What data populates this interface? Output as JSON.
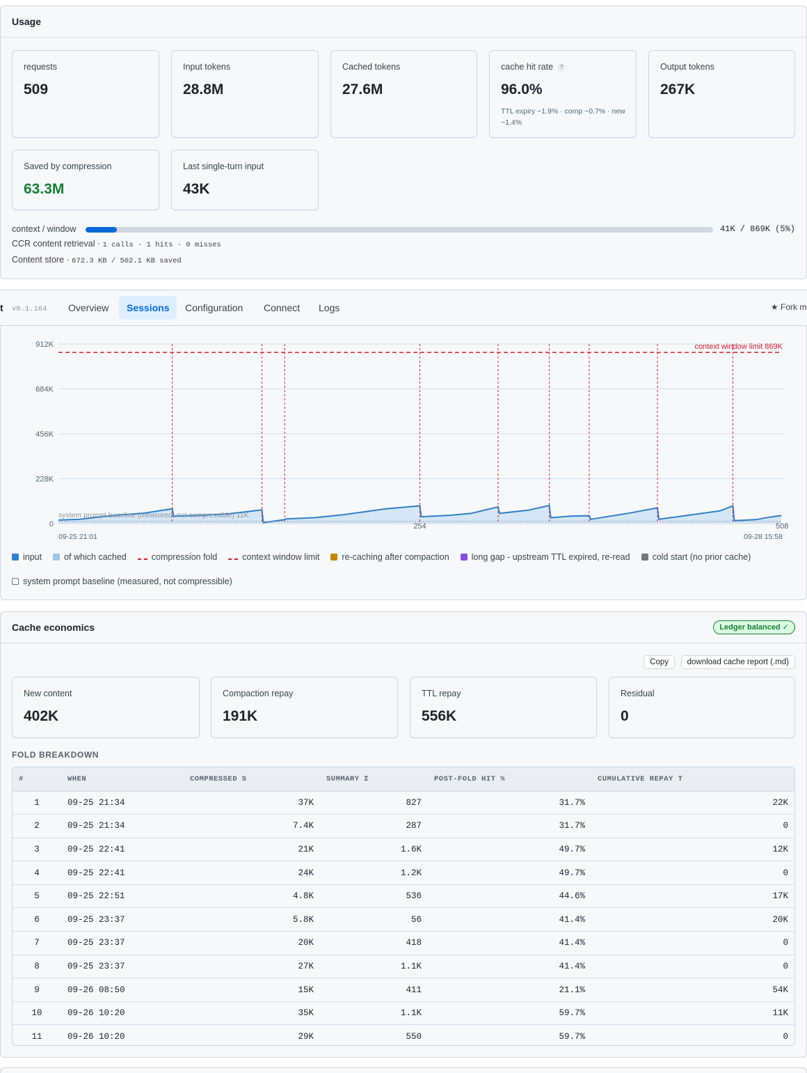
{
  "usage": {
    "title": "Usage",
    "cards": [
      {
        "label": "requests",
        "value": "509"
      },
      {
        "label": "Input tokens",
        "value": "28.8M"
      },
      {
        "label": "Cached tokens",
        "value": "27.6M"
      },
      {
        "label": "cache hit rate",
        "value": "96.0%",
        "note": "TTL expiry −1.9% · comp −0.7% · new −1.4%",
        "help": "?"
      },
      {
        "label": "Output tokens",
        "value": "267K"
      },
      {
        "label": "Saved by compression",
        "value": "63.3M"
      },
      {
        "label": "Last single-turn input",
        "value": "43K"
      }
    ],
    "context": {
      "label": "context / window",
      "value_text": "41K / 869K (5%)",
      "fraction": 0.05
    },
    "ccr": {
      "label": "CCR content retrieval",
      "stats": "1 calls · 1 hits · 0 misses"
    },
    "store": {
      "label": "Content store",
      "stats": "672.3 KB / 502.1 KB saved"
    }
  },
  "nav": {
    "brand": "t",
    "version": "v0.1.164",
    "tabs": [
      "Overview",
      "Sessions",
      "Configuration",
      "Connect",
      "Logs"
    ],
    "active_tab": "Sessions",
    "fork_label": "★ Fork me"
  },
  "chart_data": {
    "type": "area",
    "y_ticks": [
      "912K",
      "684K",
      "456K",
      "228K",
      "0"
    ],
    "ylim": [
      0,
      912000
    ],
    "xlim": [
      0,
      508
    ],
    "x_tick_labels": [
      "254",
      "508"
    ],
    "x_start_label": "09-25 21:01",
    "x_end_label": "09-28 15:58",
    "context_limit": 869000,
    "context_limit_label": "context window limit 869K",
    "baseline": 11000,
    "baseline_label": "system prompt baseline (measured, not compressible) 11K",
    "fold_requests": [
      80,
      143,
      159,
      254,
      309,
      345,
      373,
      421,
      474
    ],
    "input_series": [
      {
        "name": "input",
        "points": [
          [
            0,
            18000
          ],
          [
            15,
            22000
          ],
          [
            30,
            35000
          ],
          [
            45,
            45000
          ],
          [
            60,
            53000
          ],
          [
            80,
            75000
          ],
          [
            81,
            38000
          ],
          [
            100,
            42000
          ],
          [
            120,
            50000
          ],
          [
            143,
            70000
          ],
          [
            144,
            5000
          ],
          [
            159,
            20000
          ],
          [
            160,
            24000
          ],
          [
            180,
            30000
          ],
          [
            200,
            45000
          ],
          [
            230,
            75000
          ],
          [
            254,
            90000
          ],
          [
            255,
            35000
          ],
          [
            275,
            42000
          ],
          [
            290,
            52000
          ],
          [
            309,
            85000
          ],
          [
            310,
            52000
          ],
          [
            330,
            68000
          ],
          [
            345,
            92000
          ],
          [
            346,
            30000
          ],
          [
            360,
            38000
          ],
          [
            373,
            40000
          ],
          [
            374,
            22000
          ],
          [
            400,
            52000
          ],
          [
            421,
            80000
          ],
          [
            422,
            22000
          ],
          [
            440,
            40000
          ],
          [
            465,
            65000
          ],
          [
            474,
            90000
          ],
          [
            475,
            15000
          ],
          [
            490,
            20000
          ],
          [
            500,
            33000
          ],
          [
            508,
            41000
          ]
        ]
      }
    ],
    "legend": [
      {
        "label": "input",
        "color": "#2f80c8",
        "shape": "square"
      },
      {
        "label": "of which cached",
        "color": "#9ec5e8",
        "shape": "square"
      },
      {
        "label": "compression fold",
        "color": "#cf222e",
        "shape": "dash"
      },
      {
        "label": "context window limit",
        "color": "#cf222e",
        "shape": "dash"
      },
      {
        "label": "re-caching after compaction",
        "color": "#bf8700",
        "shape": "square"
      },
      {
        "label": "long gap - upstream TTL expired, re-read",
        "color": "#8250df",
        "shape": "square"
      },
      {
        "label": "cold start (no prior cache)",
        "color": "#6e7781",
        "shape": "square"
      },
      {
        "label": "system prompt baseline (measured, not compressible)",
        "color": "#ffffff",
        "shape": "box"
      }
    ]
  },
  "cache": {
    "title": "Cache economics",
    "badge": "Ledger balanced ✓",
    "copy_label": "Copy",
    "download_label": "download cache report (.md)",
    "cards": [
      {
        "label": "New content",
        "value": "402K"
      },
      {
        "label": "Compaction repay",
        "value": "191K"
      },
      {
        "label": "TTL repay",
        "value": "556K"
      },
      {
        "label": "Residual",
        "value": "0"
      }
    ],
    "fold_title": "FOLD BREAKDOWN",
    "columns": [
      "#",
      "WHEN",
      "COMPRESSED S",
      "SUMMARY Σ",
      "POST-FOLD HIT %",
      "CUMULATIVE REPAY T"
    ],
    "rows": [
      [
        "1",
        "09-25 21:34",
        "37K",
        "827",
        "31.7%",
        "22K"
      ],
      [
        "2",
        "09-25 21:34",
        "7.4K",
        "287",
        "31.7%",
        "0"
      ],
      [
        "3",
        "09-25 22:41",
        "21K",
        "1.6K",
        "49.7%",
        "12K"
      ],
      [
        "4",
        "09-25 22:41",
        "24K",
        "1.2K",
        "49.7%",
        "0"
      ],
      [
        "5",
        "09-25 22:51",
        "4.8K",
        "536",
        "44.6%",
        "17K"
      ],
      [
        "6",
        "09-25 23:37",
        "5.8K",
        "56",
        "41.4%",
        "20K"
      ],
      [
        "7",
        "09-25 23:37",
        "20K",
        "418",
        "41.4%",
        "0"
      ],
      [
        "8",
        "09-25 23:37",
        "27K",
        "1.1K",
        "41.4%",
        "0"
      ],
      [
        "9",
        "09-26 08:50",
        "15K",
        "411",
        "21.1%",
        "54K"
      ],
      [
        "10",
        "09-26 10:20",
        "35K",
        "1.1K",
        "59.7%",
        "11K"
      ],
      [
        "11",
        "09-26 10:20",
        "29K",
        "550",
        "59.7%",
        "0"
      ]
    ]
  }
}
